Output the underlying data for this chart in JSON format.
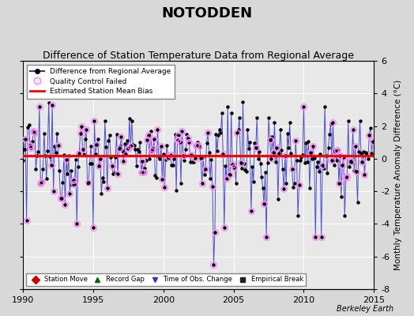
{
  "title": "NOTODDEN",
  "subtitle": "Difference of Station Temperature Data from Regional Average",
  "ylabel": "Monthly Temperature Anomaly Difference (°C)",
  "credit": "Berkeley Earth",
  "xlim": [
    1990,
    2015
  ],
  "ylim": [
    -8,
    6
  ],
  "yticks_right": [
    -8,
    -6,
    -4,
    -2,
    0,
    2,
    4,
    6
  ],
  "xticks": [
    1990,
    1995,
    2000,
    2005,
    2010,
    2015
  ],
  "bias_line_y": 0.18,
  "bias_color": "#ff0000",
  "line_color": "#3333cc",
  "dot_color": "#000000",
  "qc_edge_color": "#ff88ff",
  "fig_bg": "#d8d8d8",
  "plot_bg": "#e8e8e8",
  "grid_color": "#ffffff",
  "title_fontsize": 13,
  "subtitle_fontsize": 9,
  "seed": 12345,
  "n_months": 300
}
